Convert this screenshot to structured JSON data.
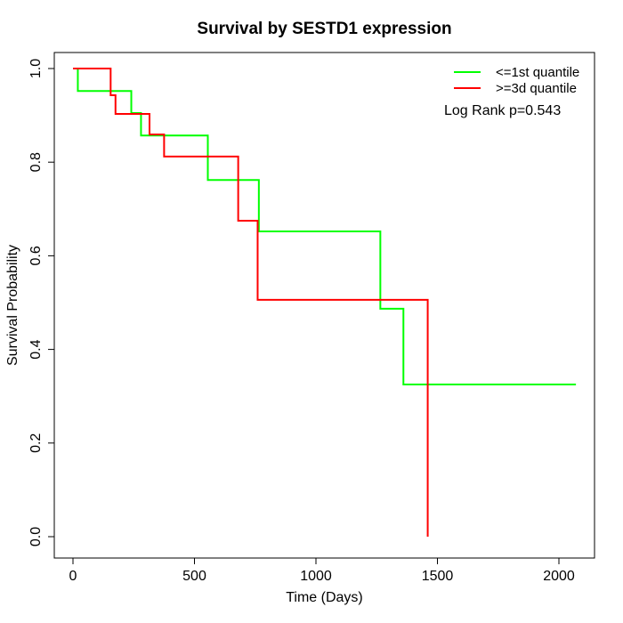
{
  "page": {
    "background": "#ffffff",
    "text_color": "#000000",
    "axis_color": "#000000"
  },
  "chart_data": {
    "type": "line",
    "subtype": "kaplan-meier-step",
    "title": "Survival by SESTD1 expression",
    "xlabel": "Time (Days)",
    "ylabel": "Survival Probability",
    "xlim": [
      0,
      2150
    ],
    "ylim": [
      0.0,
      1.0
    ],
    "x_ticks": [
      0,
      500,
      1000,
      1500,
      2000
    ],
    "y_ticks": [
      0.0,
      0.2,
      0.4,
      0.6,
      0.8,
      1.0
    ],
    "grid": false,
    "legend_position": "top-right",
    "annotation": "Log Rank p=0.543",
    "series": [
      {
        "name": "<=1st quantile",
        "color": "#00ff00",
        "steps": [
          {
            "time": 0,
            "survival": 1.0
          },
          {
            "time": 20,
            "survival": 0.952
          },
          {
            "time": 240,
            "survival": 0.905
          },
          {
            "time": 280,
            "survival": 0.857
          },
          {
            "time": 555,
            "survival": 0.762
          },
          {
            "time": 765,
            "survival": 0.652
          },
          {
            "time": 1265,
            "survival": 0.487
          },
          {
            "time": 1360,
            "survival": 0.325
          }
        ],
        "end_time": 2070
      },
      {
        "name": ">=3d quantile",
        "color": "#ff0000",
        "steps": [
          {
            "time": 0,
            "survival": 1.0
          },
          {
            "time": 155,
            "survival": 0.943
          },
          {
            "time": 175,
            "survival": 0.903
          },
          {
            "time": 315,
            "survival": 0.859
          },
          {
            "time": 375,
            "survival": 0.812
          },
          {
            "time": 680,
            "survival": 0.675
          },
          {
            "time": 760,
            "survival": 0.506
          },
          {
            "time": 1460,
            "survival": 0.0
          }
        ],
        "end_time": 1460
      }
    ]
  }
}
